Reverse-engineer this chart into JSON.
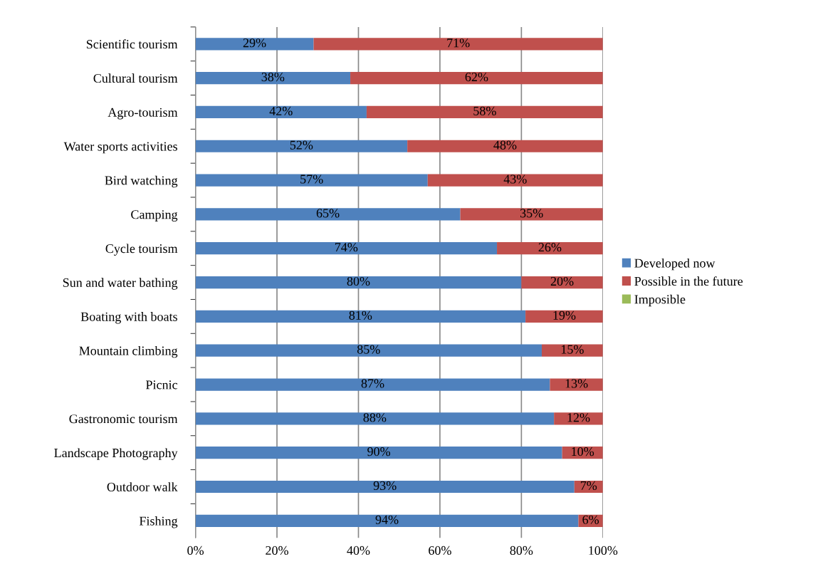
{
  "chart_data": {
    "type": "bar",
    "orientation": "horizontal",
    "stacked": true,
    "categories": [
      "Scientific tourism",
      "Cultural tourism",
      "Agro-tourism",
      "Water sports activities",
      "Bird watching",
      "Camping",
      "Cycle tourism",
      "Sun and water bathing",
      "Boating with boats",
      "Mountain climbing",
      "Picnic",
      "Gastronomic tourism",
      "Landscape Photography",
      "Outdoor walk",
      "Fishing"
    ],
    "series": [
      {
        "name": "Developed now",
        "color": "#4f81bd",
        "values": [
          29,
          38,
          42,
          52,
          57,
          65,
          74,
          80,
          81,
          85,
          87,
          88,
          90,
          93,
          94
        ],
        "value_labels": [
          "29%",
          "38%",
          "42%",
          "52%",
          "57%",
          "65%",
          "74%",
          "80%",
          "81%",
          "85%",
          "87%",
          "88%",
          "90%",
          "93%",
          "94%"
        ]
      },
      {
        "name": "Possible in the future",
        "color": "#c0504d",
        "values": [
          71,
          62,
          58,
          48,
          43,
          35,
          26,
          20,
          19,
          15,
          13,
          12,
          10,
          7,
          6
        ],
        "value_labels": [
          "71%",
          "62%",
          "58%",
          "48%",
          "43%",
          "35%",
          "26%",
          "20%",
          "19%",
          "15%",
          "13%",
          "12%",
          "10%",
          "7%",
          "6%"
        ]
      },
      {
        "name": "Imposible",
        "color": "#9bbb59",
        "values": [
          0,
          0,
          0,
          0,
          0,
          0,
          0,
          0,
          0,
          0,
          0,
          0,
          0,
          0,
          0
        ]
      }
    ],
    "xlim": [
      0,
      100
    ],
    "xticks": [
      {
        "value": 0,
        "label": "0%"
      },
      {
        "value": 20,
        "label": "20%"
      },
      {
        "value": 40,
        "label": "40%"
      },
      {
        "value": 60,
        "label": "60%"
      },
      {
        "value": 80,
        "label": "80%"
      },
      {
        "value": 100,
        "label": "100%"
      }
    ],
    "grid": "x",
    "legend": "right"
  }
}
